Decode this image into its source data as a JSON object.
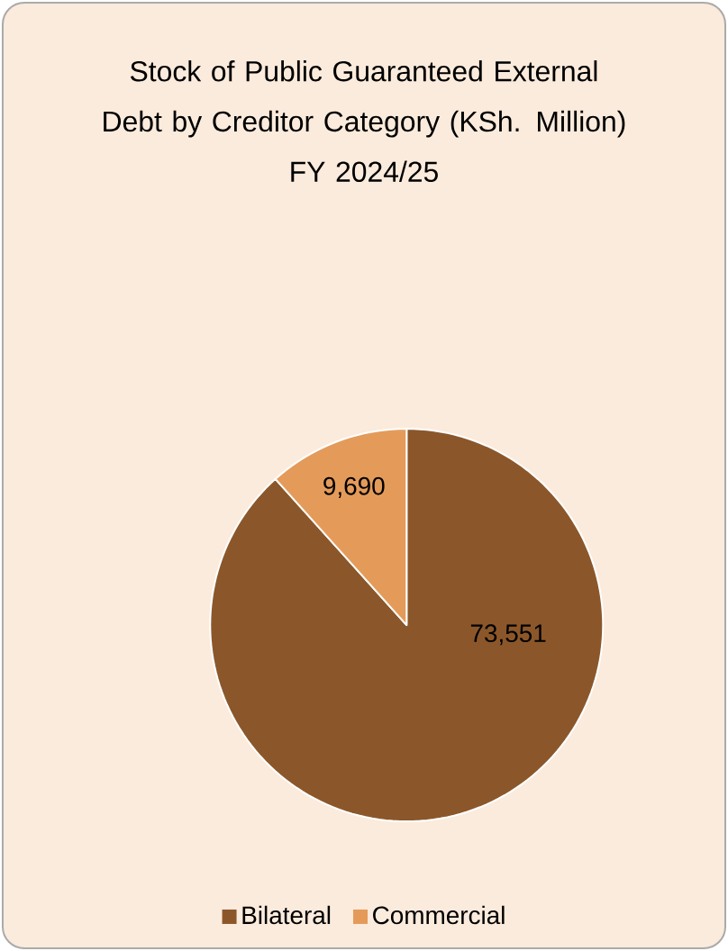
{
  "chart_data": {
    "type": "pie",
    "title": "Stock of Public Guaranteed External Debt by Creditor Category (KSh. Million)",
    "subtitle": "FY 2024/25",
    "categories": [
      "Bilateral",
      "Commercial"
    ],
    "values": [
      73551,
      9690
    ],
    "colors": [
      "#8b572a",
      "#e49b5a"
    ],
    "value_labels": [
      "73,551",
      "9,690"
    ],
    "legend": "bottom"
  }
}
